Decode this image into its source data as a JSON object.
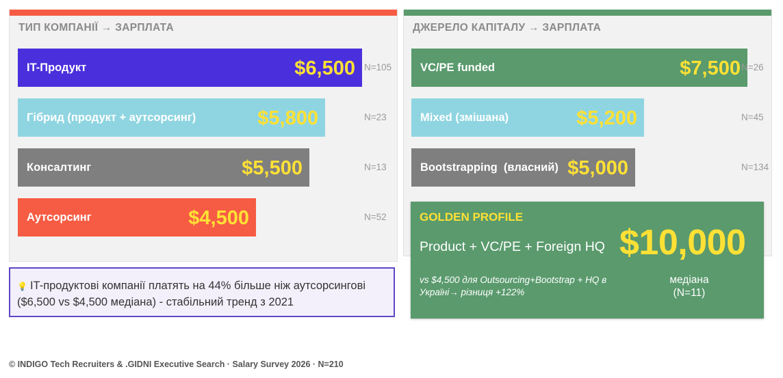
{
  "colors": {
    "left_accent": "#f65c43",
    "right_accent": "#5a9a6d",
    "value_yellow": "#ffe135",
    "insight_border": "#5e46c6"
  },
  "chart_data": [
    {
      "type": "bar",
      "orientation": "horizontal",
      "title": "ТИП КОМПАНІЇ → ЗАРПЛАТА",
      "xlim": [
        0,
        6500
      ],
      "bars": [
        {
          "label": "IT-Продукт",
          "value": 6500,
          "value_label": "$6,500",
          "n_label": "N=105",
          "color": "#4a2fdc"
        },
        {
          "label": "Гібрид (продукт + аутсорсинг)",
          "value": 5800,
          "value_label": "$5,800",
          "n_label": "N=23",
          "color": "#8fd5e1"
        },
        {
          "label": "Консалтинг",
          "value": 5500,
          "value_label": "$5,500",
          "n_label": "N=13",
          "color": "#7f7f7f"
        },
        {
          "label": "Аутсорсинг",
          "value": 4500,
          "value_label": "$4,500",
          "n_label": "N=52",
          "color": "#f65c43"
        }
      ]
    },
    {
      "type": "bar",
      "orientation": "horizontal",
      "title": "ДЖЕРЕЛО КАПІТАЛУ → ЗАРПЛАТА",
      "xlim": [
        0,
        7500
      ],
      "bars": [
        {
          "label": "VC/PE funded",
          "value": 7500,
          "value_label": "$7,500",
          "n_label": "N=26",
          "color": "#5a9a6d"
        },
        {
          "label": "Mixed (змішана)",
          "value": 5200,
          "value_label": "$5,200",
          "n_label": "N=45",
          "color": "#8fd5e1"
        },
        {
          "label": "Bootstrapping  (власний)",
          "value": 5000,
          "value_label": "$5,000",
          "n_label": "N=134",
          "color": "#7f7f7f"
        }
      ]
    }
  ],
  "insight": {
    "icon": "lightbulb-icon",
    "text": "IT-продуктові компанії платять на 44% більше ніж аутсорсингові ($6,500 vs $4,500 медіана) - стабільний тренд з 2021"
  },
  "golden": {
    "title": "GOLDEN PROFILE",
    "formula": "Product + VC/PE + Foreign HQ",
    "value": "$10,000",
    "note": "vs $4,500 для Outsourcing+Bootstrap + HQ в Україні→ різниця +122%",
    "median_label": "медіана",
    "n_label": "(N=11)"
  },
  "footer": "© INDIGO Tech Recruiters & .GIDNI Executive Search · Salary Survey 2026 · N=210"
}
